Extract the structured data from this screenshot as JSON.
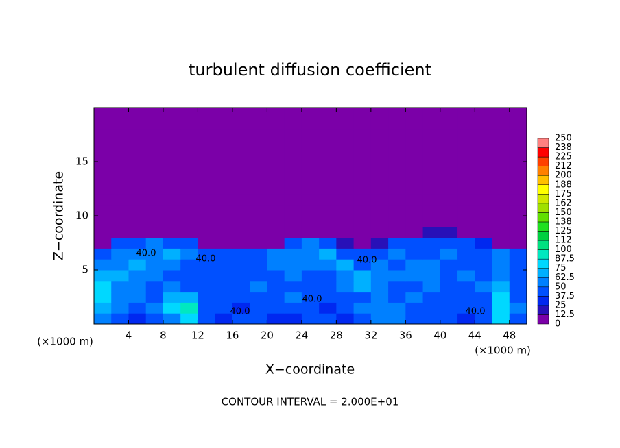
{
  "chart_data": {
    "type": "contour",
    "title": "turbulent diffusion coefficient",
    "xlabel": "X−coordinate",
    "ylabel": "Z−coordinate",
    "xunit": "(×1000 m)",
    "xunit_right": "(×1000 m)",
    "footer": "CONTOUR INTERVAL = 2.000E+01",
    "xlim": [
      0,
      50
    ],
    "ylim": [
      0,
      20
    ],
    "xticks": [
      4,
      8,
      12,
      16,
      20,
      24,
      28,
      32,
      36,
      40,
      44,
      48
    ],
    "yticks": [
      5,
      10,
      15
    ],
    "x": [
      1,
      3,
      5,
      7,
      9,
      11,
      13,
      15,
      17,
      19,
      21,
      23,
      25,
      27,
      29,
      31,
      33,
      35,
      37,
      39,
      41,
      43,
      45,
      47,
      49
    ],
    "y": [
      0.5,
      1.5,
      2.5,
      3.5,
      4.5,
      5.5,
      6.5,
      7.5,
      8.5,
      9.5,
      10.5,
      11.5,
      12.5,
      13.5,
      14.5,
      15.5,
      16.5,
      17.5,
      18.5,
      19.5
    ],
    "z": [
      [
        60,
        45,
        30,
        45,
        60,
        80,
        40,
        30,
        45,
        40,
        30,
        35,
        45,
        40,
        30,
        45,
        55,
        60,
        45,
        40,
        45,
        35,
        40,
        75,
        45
      ],
      [
        70,
        50,
        45,
        60,
        80,
        95,
        45,
        40,
        35,
        45,
        40,
        45,
        40,
        35,
        45,
        50,
        60,
        55,
        45,
        45,
        40,
        45,
        45,
        80,
        50
      ],
      [
        75,
        55,
        50,
        45,
        70,
        70,
        45,
        40,
        45,
        45,
        45,
        50,
        40,
        45,
        40,
        45,
        55,
        45,
        50,
        45,
        45,
        40,
        45,
        75,
        45
      ],
      [
        80,
        60,
        50,
        45,
        55,
        45,
        40,
        45,
        45,
        50,
        45,
        45,
        45,
        45,
        55,
        65,
        50,
        45,
        45,
        50,
        45,
        45,
        50,
        70,
        40
      ],
      [
        70,
        65,
        55,
        50,
        45,
        45,
        40,
        45,
        40,
        45,
        45,
        50,
        45,
        45,
        50,
        70,
        60,
        50,
        50,
        55,
        45,
        50,
        45,
        60,
        45
      ],
      [
        55,
        60,
        65,
        55,
        60,
        45,
        40,
        40,
        45,
        45,
        50,
        55,
        50,
        60,
        65,
        45,
        50,
        45,
        55,
        50,
        45,
        45,
        45,
        50,
        40
      ],
      [
        45,
        50,
        55,
        55,
        65,
        50,
        45,
        45,
        40,
        40,
        50,
        60,
        60,
        65,
        45,
        40,
        45,
        50,
        45,
        45,
        50,
        45,
        45,
        50,
        45
      ],
      [
        10,
        40,
        45,
        50,
        45,
        40,
        10,
        5,
        5,
        5,
        5,
        40,
        50,
        40,
        20,
        5,
        15,
        45,
        45,
        45,
        45,
        40,
        30,
        10,
        5
      ],
      [
        0,
        0,
        0,
        0,
        0,
        0,
        0,
        0,
        0,
        0,
        0,
        0,
        0,
        0,
        0,
        0,
        0,
        0,
        10,
        20,
        20,
        10,
        0,
        0,
        0
      ],
      [
        0,
        0,
        0,
        0,
        0,
        0,
        0,
        0,
        0,
        0,
        0,
        0,
        0,
        0,
        0,
        0,
        0,
        0,
        0,
        0,
        0,
        0,
        0,
        0,
        0
      ],
      [
        0,
        0,
        0,
        0,
        0,
        0,
        0,
        0,
        0,
        0,
        0,
        0,
        0,
        0,
        0,
        0,
        0,
        0,
        0,
        0,
        0,
        0,
        0,
        0,
        0
      ],
      [
        0,
        0,
        0,
        0,
        0,
        0,
        0,
        0,
        0,
        0,
        0,
        0,
        0,
        0,
        0,
        0,
        0,
        0,
        0,
        0,
        0,
        0,
        0,
        0,
        0
      ],
      [
        0,
        0,
        0,
        0,
        0,
        0,
        0,
        0,
        0,
        0,
        0,
        0,
        0,
        0,
        0,
        0,
        0,
        0,
        0,
        0,
        0,
        0,
        0,
        0,
        0
      ],
      [
        0,
        0,
        0,
        0,
        0,
        0,
        0,
        0,
        0,
        0,
        0,
        0,
        0,
        0,
        0,
        0,
        0,
        0,
        0,
        0,
        0,
        0,
        0,
        0,
        0
      ],
      [
        0,
        0,
        0,
        0,
        0,
        0,
        0,
        0,
        0,
        0,
        0,
        0,
        0,
        0,
        0,
        0,
        0,
        0,
        0,
        0,
        0,
        0,
        0,
        0,
        0
      ],
      [
        0,
        0,
        0,
        0,
        0,
        0,
        0,
        0,
        0,
        0,
        0,
        0,
        0,
        0,
        0,
        0,
        0,
        0,
        0,
        0,
        0,
        0,
        0,
        0,
        0
      ],
      [
        0,
        0,
        0,
        0,
        0,
        0,
        0,
        0,
        0,
        0,
        0,
        0,
        0,
        0,
        0,
        0,
        0,
        0,
        0,
        0,
        0,
        0,
        0,
        0,
        0
      ],
      [
        0,
        0,
        0,
        0,
        0,
        0,
        0,
        0,
        0,
        0,
        0,
        0,
        0,
        0,
        0,
        0,
        0,
        0,
        0,
        0,
        0,
        0,
        0,
        0,
        0
      ],
      [
        0,
        0,
        0,
        0,
        0,
        0,
        0,
        0,
        0,
        0,
        0,
        0,
        0,
        0,
        0,
        0,
        0,
        0,
        0,
        0,
        0,
        0,
        0,
        0,
        0
      ],
      [
        0,
        0,
        0,
        0,
        0,
        0,
        0,
        0,
        0,
        0,
        0,
        0,
        0,
        0,
        0,
        0,
        0,
        0,
        0,
        0,
        0,
        0,
        0,
        0,
        0
      ]
    ],
    "levels": [
      0,
      12.5,
      25,
      37.5,
      50,
      62.5,
      75,
      87.5,
      100,
      {
        "value": 112.5,
        "label": "112"
      },
      125,
      {
        "value": 137.5,
        "label": "138"
      },
      150,
      {
        "value": 162.5,
        "label": "162"
      },
      175,
      {
        "value": 187.5,
        "label": "188"
      },
      200,
      {
        "value": 212.5,
        "label": "212"
      },
      225,
      {
        "value": 237.5,
        "label": "238"
      },
      250
    ],
    "colors": [
      "#7b00a8",
      "#2810b8",
      "#0028f0",
      "#0050ff",
      "#0080ff",
      "#00b0ff",
      "#00d8ff",
      "#00e8c0",
      "#00e080",
      "#00d040",
      "#20e020",
      "#60e000",
      "#a0e000",
      "#d0e800",
      "#ffff00",
      "#ffc000",
      "#ff8000",
      "#ff4000",
      "#ff0000",
      "#ff8080"
    ],
    "contour_labels": [
      "40.0",
      "40.0",
      "40.0",
      "40.0",
      "40.0",
      "40.0"
    ]
  }
}
